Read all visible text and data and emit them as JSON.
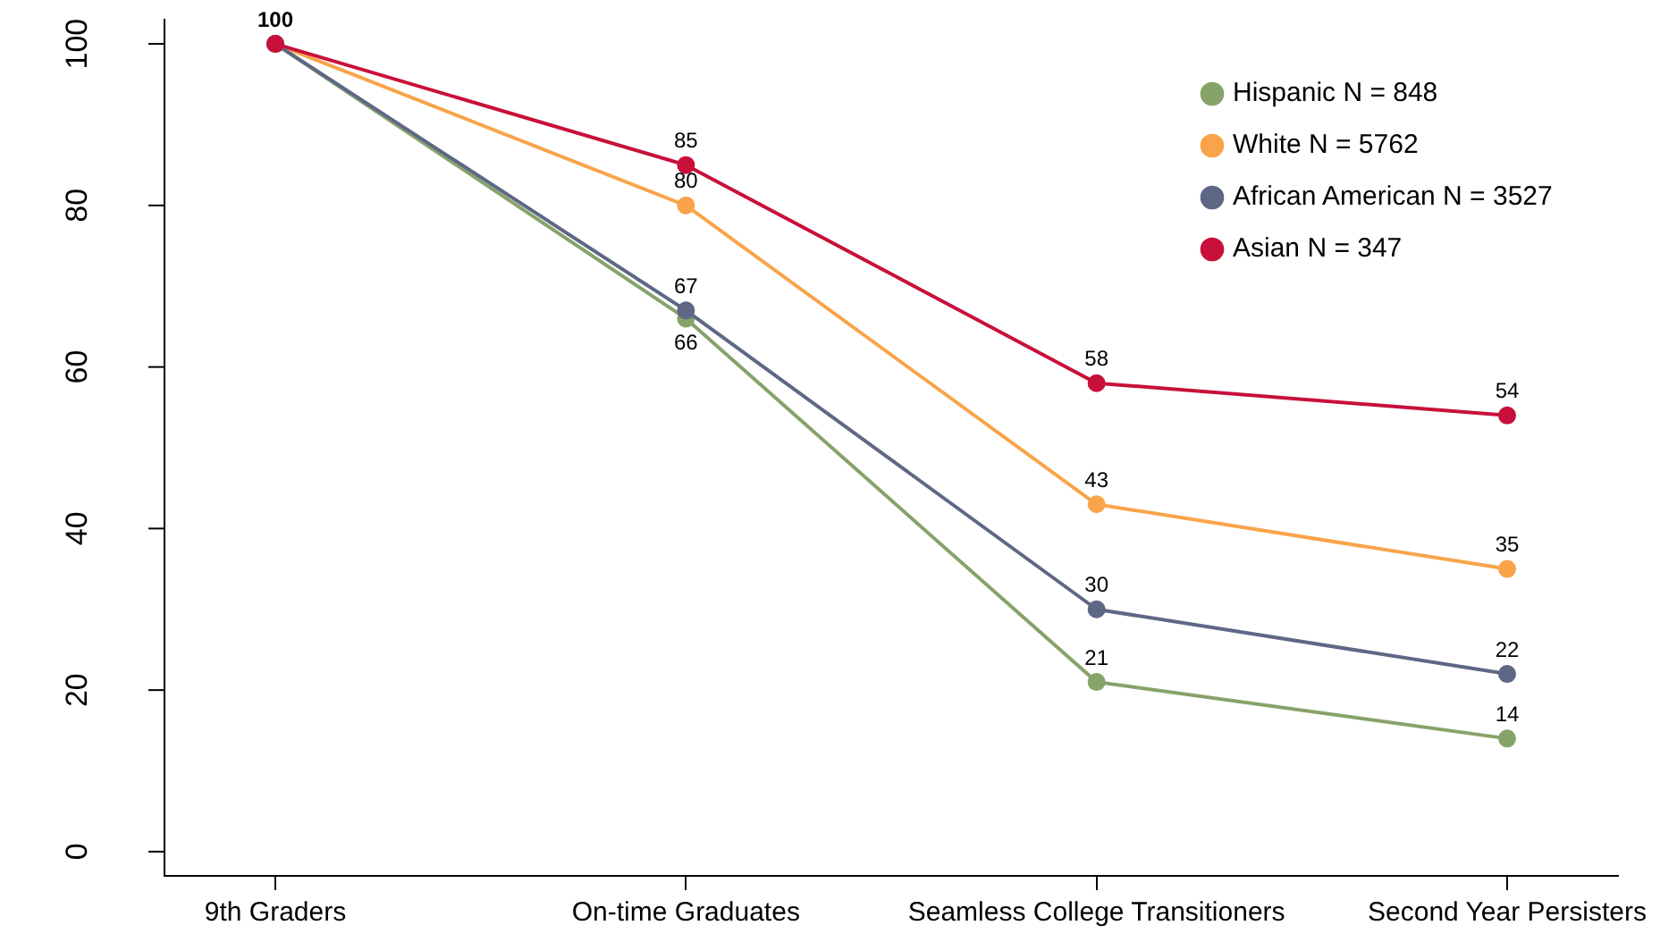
{
  "chart_data": {
    "type": "line",
    "categories": [
      "9th Graders",
      "On-time Graduates",
      "Seamless College Transitioners",
      "Second Year Persisters"
    ],
    "series": [
      {
        "name": "Hispanic N = 848",
        "color": "#86a36a",
        "values": [
          100,
          66,
          21,
          14
        ],
        "value_labels": [
          null,
          "66",
          "21",
          "14"
        ]
      },
      {
        "name": "White N = 5762",
        "color": "#f9a44a",
        "values": [
          100,
          80,
          43,
          35
        ],
        "value_labels": [
          null,
          "80",
          "43",
          "35"
        ]
      },
      {
        "name": "African American N = 3527",
        "color": "#5e6785",
        "values": [
          100,
          67,
          30,
          22
        ],
        "value_labels": [
          null,
          "67",
          "30",
          "22"
        ]
      },
      {
        "name": "Asian N = 347",
        "color": "#c8103a",
        "values": [
          100,
          85,
          58,
          54
        ],
        "value_labels": [
          "100",
          "85",
          "58",
          "54"
        ]
      }
    ],
    "ylim": [
      -3,
      103
    ],
    "yticks": [
      0,
      20,
      40,
      60,
      80,
      100
    ],
    "grid": false,
    "legend": "top right",
    "marker": "circle",
    "line_style": "solid"
  }
}
